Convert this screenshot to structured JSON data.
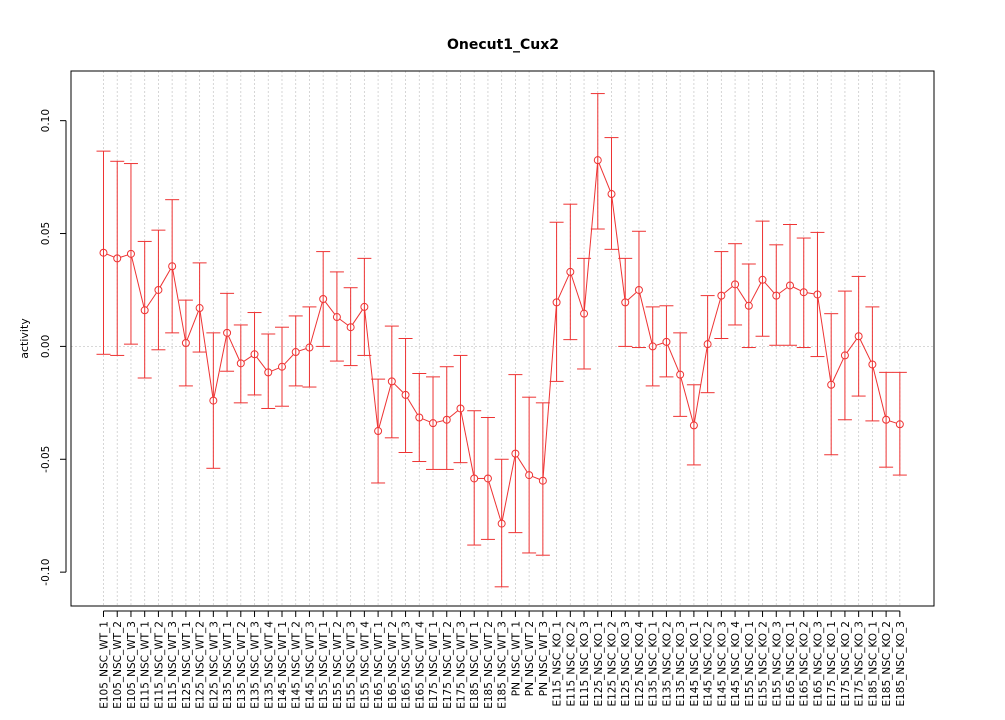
{
  "chart_data": {
    "type": "line",
    "title": "Onecut1_Cux2",
    "xlabel": "",
    "ylabel": "activity",
    "ylim": [
      -0.115,
      0.122
    ],
    "yticks": [
      -0.1,
      -0.05,
      0.0,
      0.05,
      0.1
    ],
    "ytick_labels": [
      "-0.10",
      "-0.05",
      "0.00",
      "0.05",
      "0.10"
    ],
    "grid": true,
    "color": "#ee3333",
    "grid_color": "#cccccc",
    "categories": [
      "E105_NSC_WT_1",
      "E105_NSC_WT_2",
      "E105_NSC_WT_3",
      "E115_NSC_WT_1",
      "E115_NSC_WT_2",
      "E115_NSC_WT_3",
      "E125_NSC_WT_1",
      "E125_NSC_WT_2",
      "E125_NSC_WT_3",
      "E135_NSC_WT_1",
      "E135_NSC_WT_2",
      "E135_NSC_WT_3",
      "E135_NSC_WT_4",
      "E145_NSC_WT_1",
      "E145_NSC_WT_2",
      "E145_NSC_WT_3",
      "E155_NSC_WT_1",
      "E155_NSC_WT_2",
      "E155_NSC_WT_3",
      "E155_NSC_WT_4",
      "E165_NSC_WT_1",
      "E165_NSC_WT_2",
      "E165_NSC_WT_3",
      "E165_NSC_WT_4",
      "E175_NSC_WT_1",
      "E175_NSC_WT_2",
      "E175_NSC_WT_3",
      "E185_NSC_WT_1",
      "E185_NSC_WT_2",
      "E185_NSC_WT_3",
      "PN_NSC_WT_1",
      "PN_NSC_WT_2",
      "PN_NSC_WT_3",
      "E115_NSC_KO_1",
      "E115_NSC_KO_2",
      "E115_NSC_KO_3",
      "E125_NSC_KO_1",
      "E125_NSC_KO_2",
      "E125_NSC_KO_3",
      "E125_NSC_KO_4",
      "E135_NSC_KO_1",
      "E135_NSC_KO_2",
      "E135_NSC_KO_3",
      "E145_NSC_KO_1",
      "E145_NSC_KO_2",
      "E145_NSC_KO_3",
      "E145_NSC_KO_4",
      "E155_NSC_KO_1",
      "E155_NSC_KO_2",
      "E155_NSC_KO_3",
      "E165_NSC_KO_1",
      "E165_NSC_KO_2",
      "E165_NSC_KO_3",
      "E175_NSC_KO_1",
      "E175_NSC_KO_2",
      "E175_NSC_KO_3",
      "E185_NSC_KO_1",
      "E185_NSC_KO_2",
      "E185_NSC_KO_3"
    ],
    "values": [
      0.0415,
      0.039,
      0.041,
      0.016,
      0.025,
      0.0355,
      0.0015,
      0.017,
      -0.024,
      0.006,
      -0.0075,
      -0.0035,
      -0.0115,
      -0.009,
      -0.0025,
      -0.0005,
      0.021,
      0.013,
      0.0085,
      0.0175,
      -0.0375,
      -0.0155,
      -0.0215,
      -0.0315,
      -0.034,
      -0.0325,
      -0.0275,
      -0.0585,
      -0.0585,
      -0.0785,
      -0.0475,
      -0.057,
      -0.0595,
      0.0195,
      0.033,
      0.0145,
      0.0825,
      0.0675,
      0.0195,
      0.025,
      0.0,
      0.002,
      -0.0125,
      -0.035,
      0.001,
      0.0225,
      0.0275,
      0.018,
      0.0295,
      0.0225,
      0.027,
      0.024,
      0.023,
      -0.017,
      -0.004,
      0.0045,
      -0.008,
      -0.0325,
      -0.0345
    ],
    "lower": [
      -0.0035,
      -0.004,
      0.001,
      -0.014,
      -0.0015,
      0.006,
      -0.0175,
      -0.0025,
      -0.054,
      -0.011,
      -0.025,
      -0.0215,
      -0.0275,
      -0.0265,
      -0.0175,
      -0.018,
      0.0,
      -0.0065,
      -0.0085,
      -0.004,
      -0.0605,
      -0.0405,
      -0.047,
      -0.051,
      -0.0545,
      -0.0545,
      -0.0515,
      -0.088,
      -0.0855,
      -0.1065,
      -0.0825,
      -0.0915,
      -0.0925,
      -0.0155,
      0.003,
      -0.01,
      0.052,
      0.043,
      0.0,
      -0.0005,
      -0.0175,
      -0.0135,
      -0.031,
      -0.0525,
      -0.0205,
      0.0035,
      0.0095,
      -0.0005,
      0.0045,
      0.0005,
      0.0005,
      -0.0005,
      -0.0045,
      -0.048,
      -0.0325,
      -0.022,
      -0.033,
      -0.0535,
      -0.057
    ],
    "upper": [
      0.0865,
      0.082,
      0.081,
      0.0465,
      0.0515,
      0.065,
      0.0205,
      0.037,
      0.006,
      0.0235,
      0.0095,
      0.015,
      0.0055,
      0.0085,
      0.0135,
      0.0175,
      0.042,
      0.033,
      0.026,
      0.039,
      -0.0145,
      0.009,
      0.0035,
      -0.012,
      -0.0135,
      -0.009,
      -0.004,
      -0.0285,
      -0.0315,
      -0.05,
      -0.0125,
      -0.0225,
      -0.025,
      0.055,
      0.063,
      0.039,
      0.112,
      0.0925,
      0.039,
      0.051,
      0.0175,
      0.018,
      0.006,
      -0.017,
      0.0225,
      0.042,
      0.0455,
      0.0365,
      0.0555,
      0.045,
      0.054,
      0.048,
      0.0505,
      0.0145,
      0.0245,
      0.031,
      0.0175,
      -0.0115,
      -0.0115
    ]
  }
}
